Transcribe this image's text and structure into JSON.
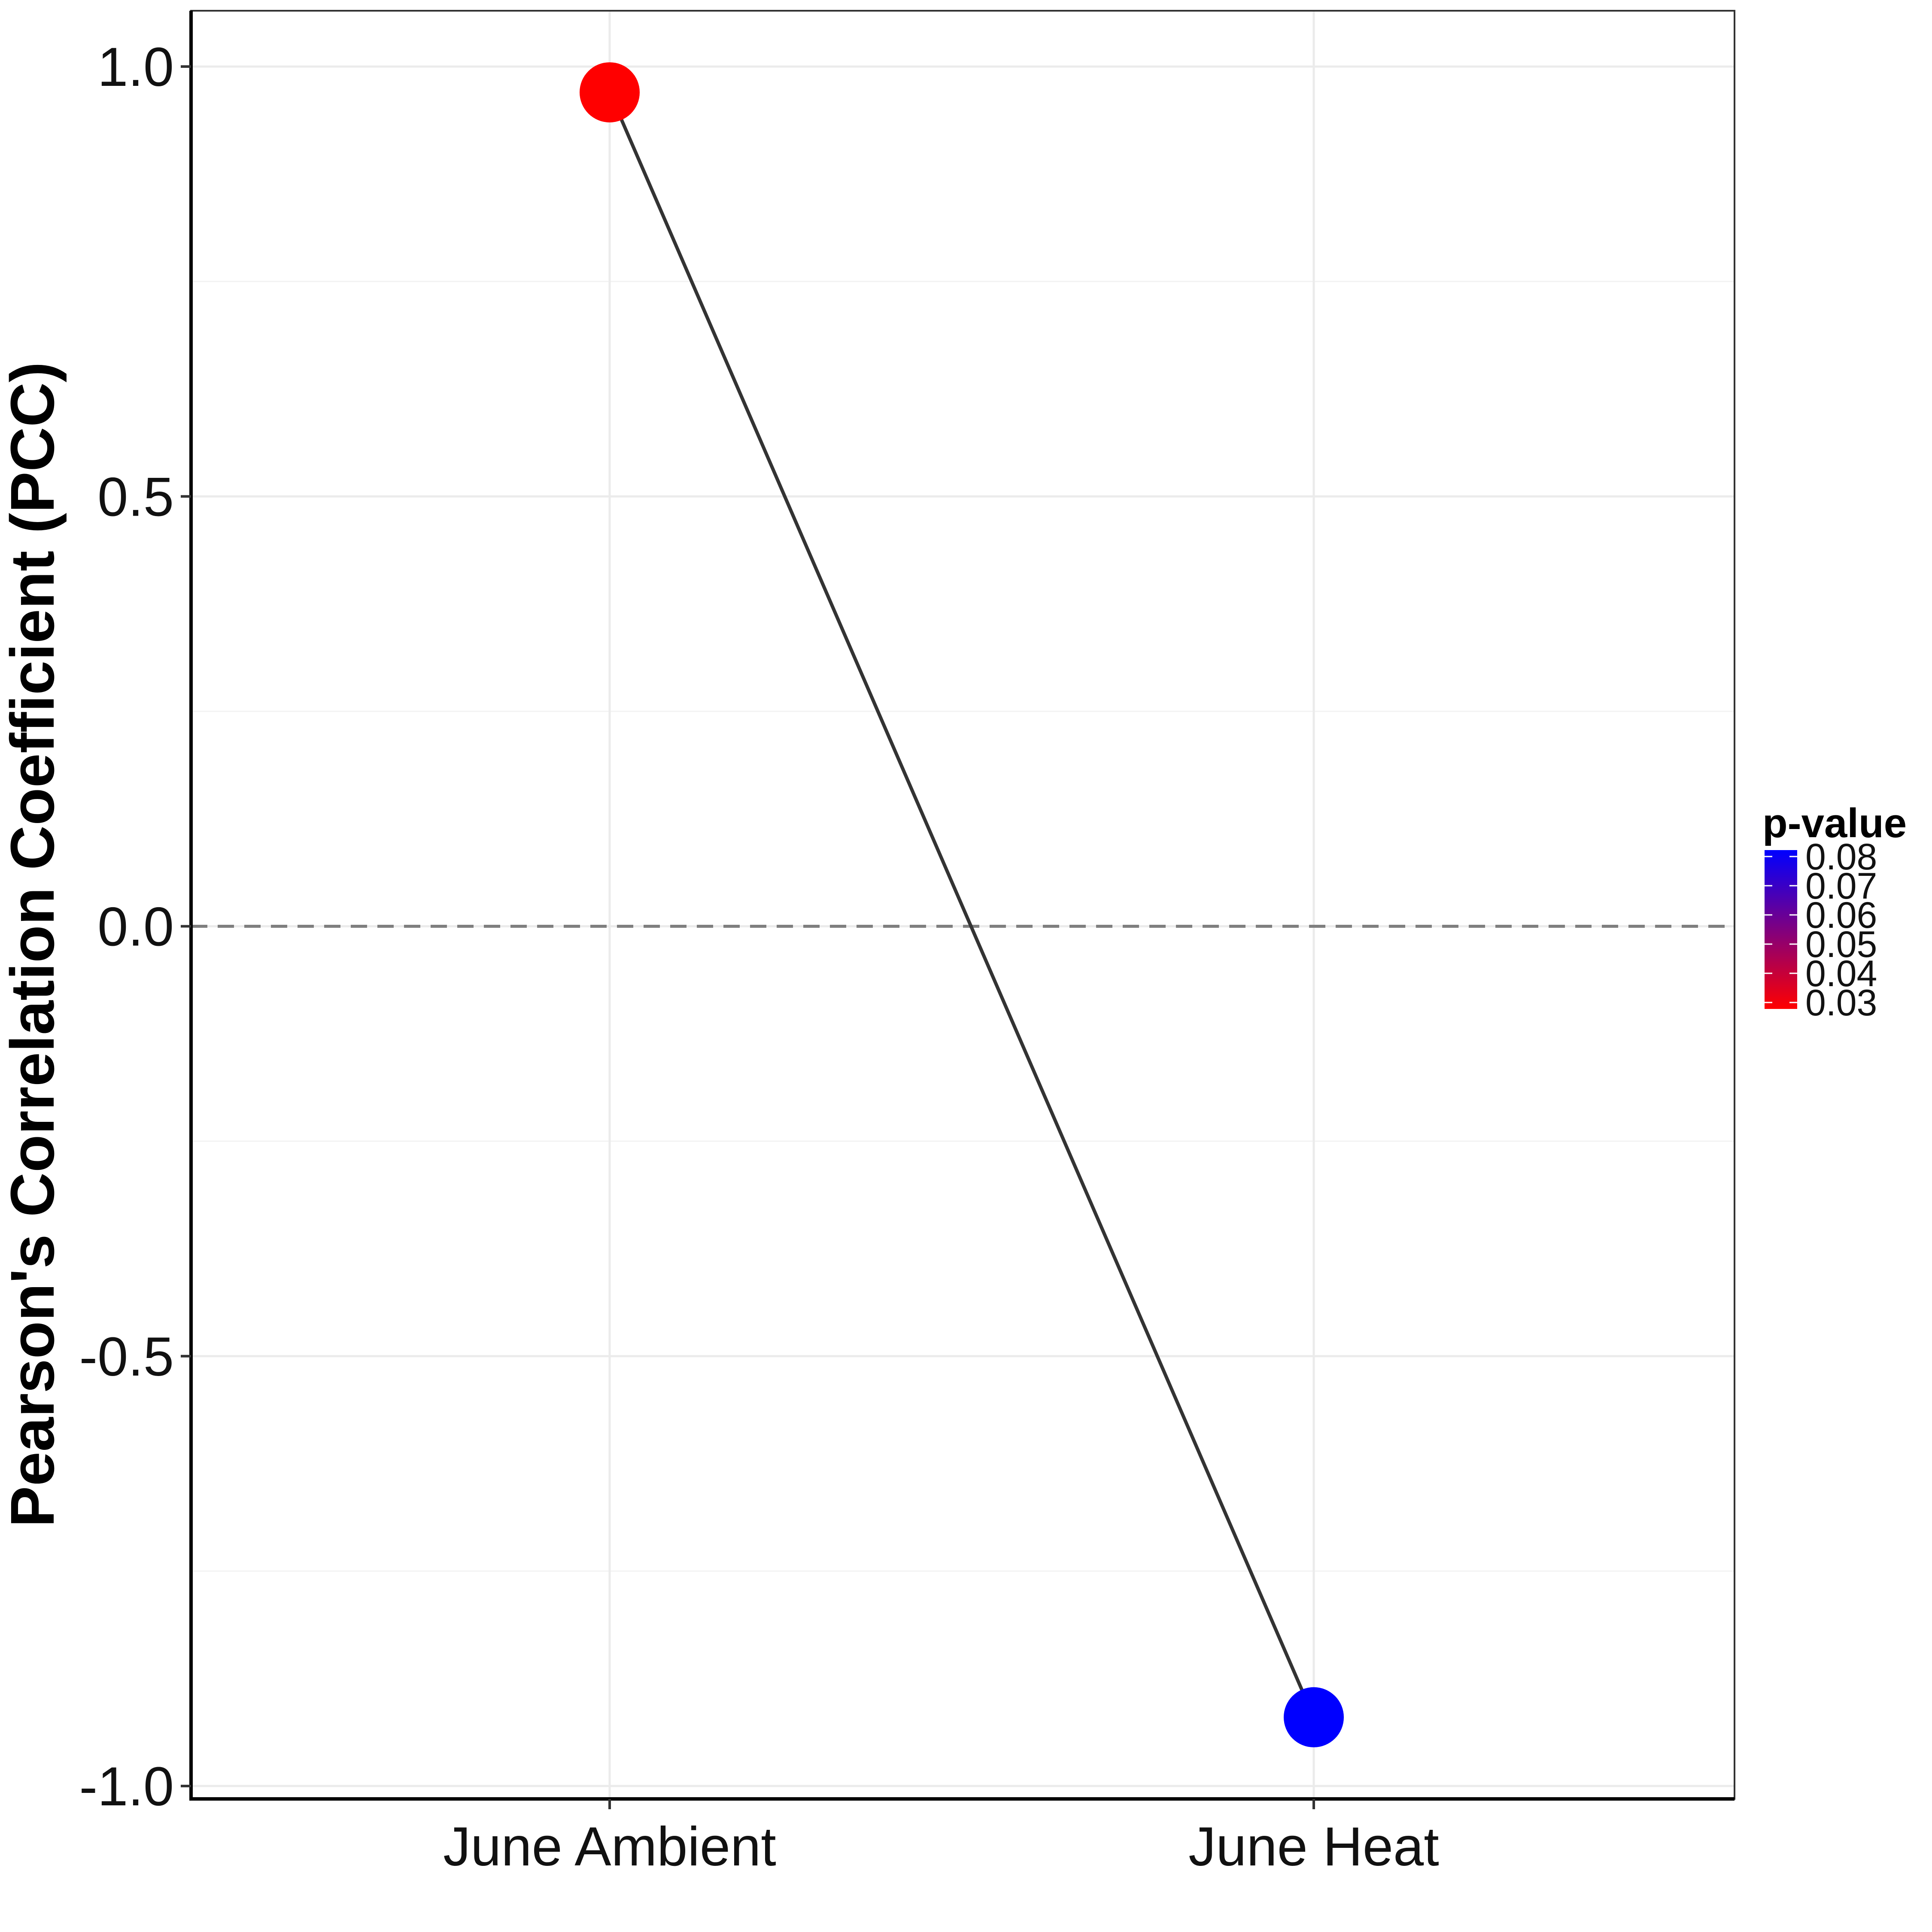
{
  "chart_data": {
    "type": "line",
    "categories": [
      "June Ambient",
      "June Heat"
    ],
    "values": [
      0.97,
      -0.92
    ],
    "p_values": [
      0.03,
      0.08
    ],
    "point_colors": [
      "#ff0000",
      "#0000ff"
    ],
    "title": "",
    "xlabel": "",
    "ylabel": "Pearson's Correlation Coefficient (PCC)",
    "ylim": [
      -1.0,
      1.0
    ],
    "y_ticks": [
      -1.0,
      -0.5,
      0.0,
      0.5,
      1.0
    ],
    "y_tick_labels": [
      "-1.0",
      "-0.5",
      "0.0",
      "0.5",
      "1.0"
    ],
    "reference_line": 0.0,
    "grid": true,
    "legend": {
      "title": "p-value",
      "placement": "right",
      "type": "colorbar",
      "min_color": "#ff0000",
      "max_color": "#0000ff",
      "range": [
        0.03,
        0.08
      ],
      "labels": [
        "0.08",
        "0.07",
        "0.06",
        "0.05",
        "0.04",
        "0.03"
      ]
    }
  }
}
